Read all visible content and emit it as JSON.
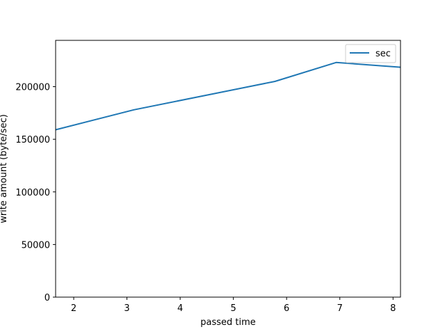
{
  "chart_data": {
    "type": "line",
    "title": "",
    "xlabel": "passed time",
    "ylabel": "write amount (byte/sec)",
    "xlim": [
      1.66,
      8.14
    ],
    "ylim": [
      0,
      244000
    ],
    "x_ticks": [
      2,
      3,
      4,
      5,
      6,
      7,
      8
    ],
    "x_tick_labels": [
      "2",
      "3",
      "4",
      "5",
      "6",
      "7",
      "8"
    ],
    "y_ticks": [
      0,
      50000,
      100000,
      150000,
      200000
    ],
    "y_tick_labels": [
      "0",
      "50000",
      "100000",
      "150000",
      "200000"
    ],
    "grid": false,
    "legend_position": "top-right",
    "series": [
      {
        "name": "sec",
        "color": "#1f77b4",
        "x": [
          1.66,
          3.13,
          5.78,
          6.93,
          8.14
        ],
        "y": [
          159000,
          178000,
          205000,
          223000,
          218500
        ]
      }
    ]
  }
}
